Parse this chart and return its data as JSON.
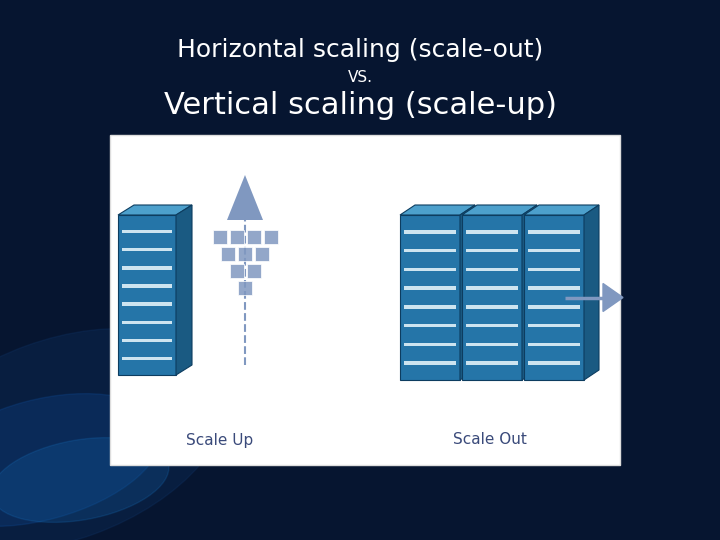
{
  "title_line1": "Horizontal scaling (scale-out)",
  "title_vs": "VS.",
  "title_line2": "Vertical scaling (scale-up)",
  "title_color": "#ffffff",
  "title_fontsize": 18,
  "vs_fontsize": 11,
  "subtitle_fontsize": 22,
  "bg_color": "#061530",
  "box_bg": "#ffffff",
  "server_front": "#2575a8",
  "server_top": "#4da0cc",
  "server_side": "#1a5a82",
  "server_stripe": "#cde4f0",
  "arrow_color": "#8098c0",
  "label_color": "#3a4a7a",
  "label_fontsize": 11,
  "scale_label_up": "Scale Up",
  "scale_label_out": "Scale Out",
  "sq_color": "#8098c0"
}
